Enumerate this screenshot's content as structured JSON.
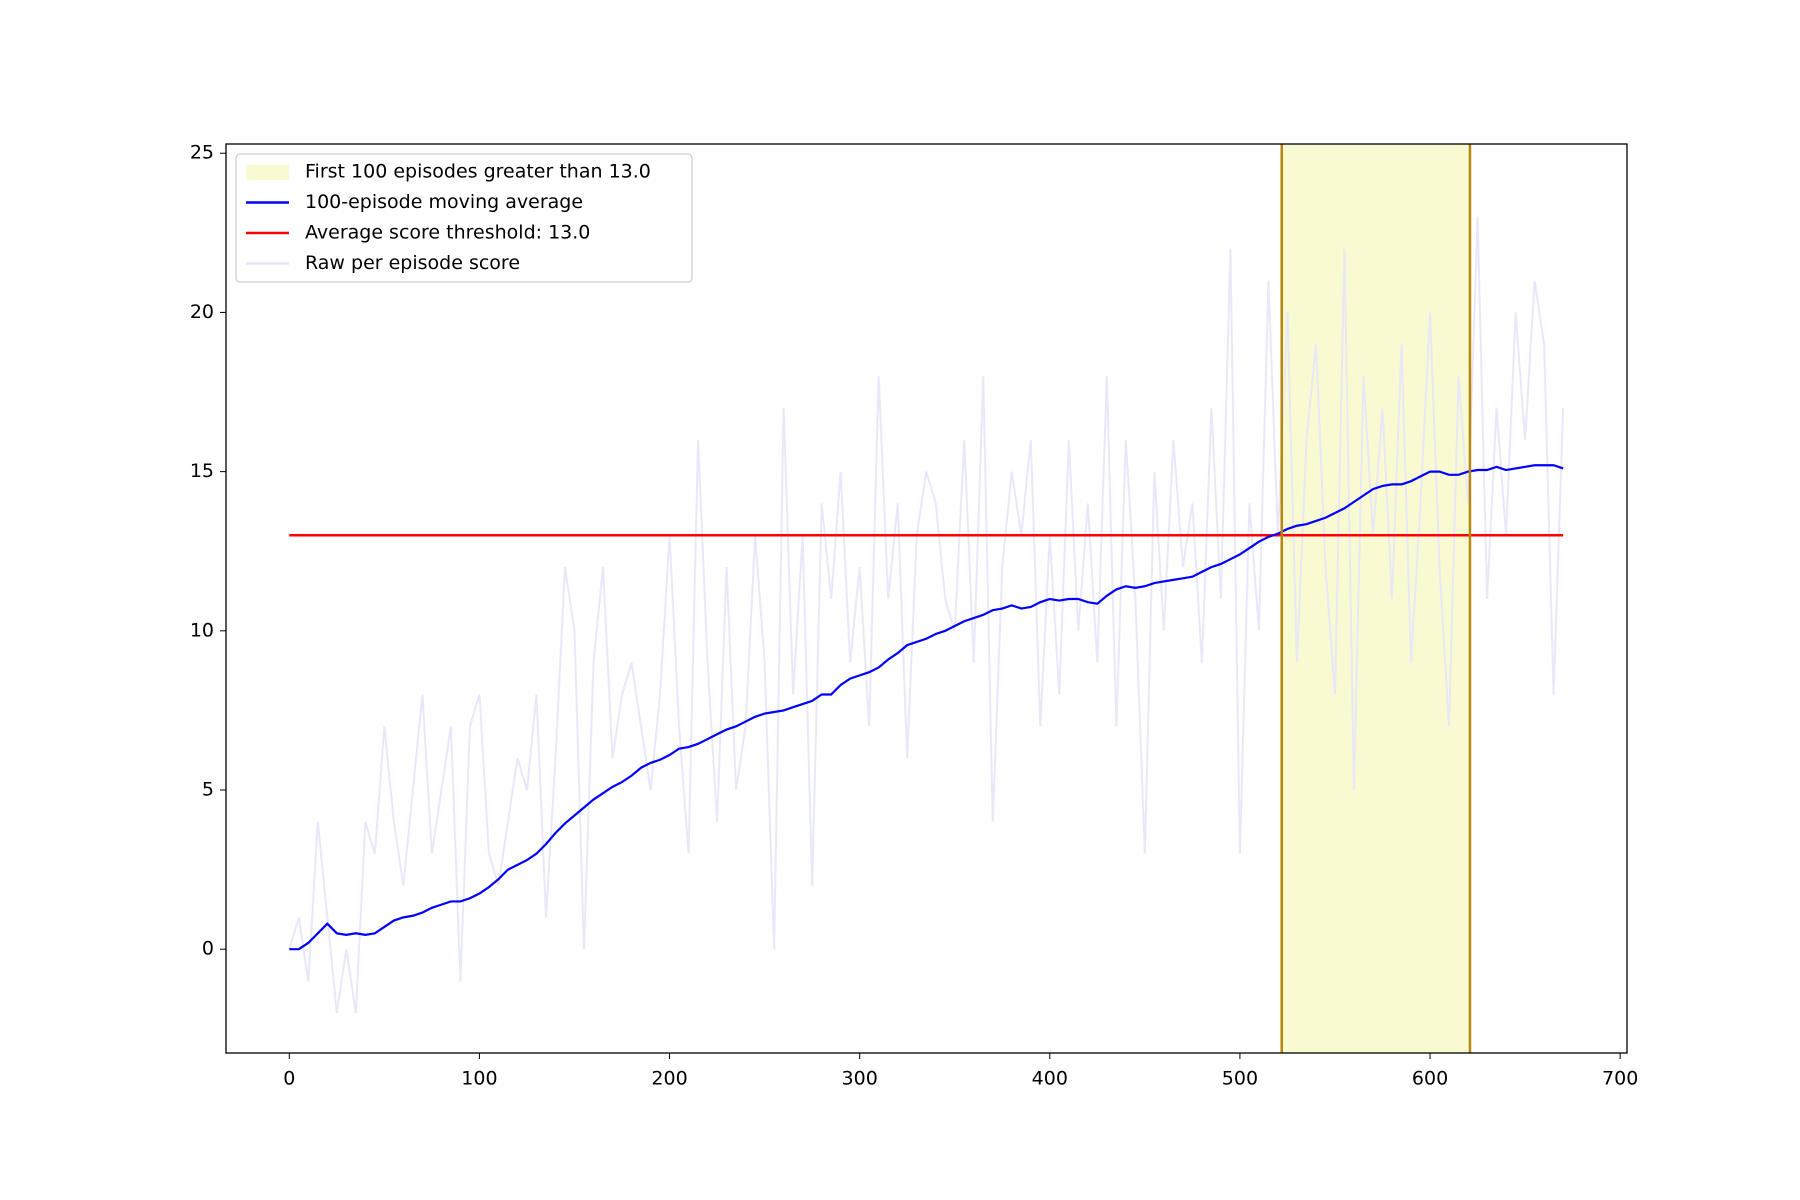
{
  "chart_data": {
    "type": "line",
    "x": [
      0,
      5,
      10,
      15,
      20,
      25,
      30,
      35,
      40,
      45,
      50,
      55,
      60,
      65,
      70,
      75,
      80,
      85,
      90,
      95,
      100,
      105,
      110,
      115,
      120,
      125,
      130,
      135,
      140,
      145,
      150,
      155,
      160,
      165,
      170,
      175,
      180,
      185,
      190,
      195,
      200,
      205,
      210,
      215,
      220,
      225,
      230,
      235,
      240,
      245,
      250,
      255,
      260,
      265,
      270,
      275,
      280,
      285,
      290,
      295,
      300,
      305,
      310,
      315,
      320,
      325,
      330,
      335,
      340,
      345,
      350,
      355,
      360,
      365,
      370,
      375,
      380,
      385,
      390,
      395,
      400,
      405,
      410,
      415,
      420,
      425,
      430,
      435,
      440,
      445,
      450,
      455,
      460,
      465,
      470,
      475,
      480,
      485,
      490,
      495,
      500,
      505,
      510,
      515,
      520,
      525,
      530,
      535,
      540,
      545,
      550,
      555,
      560,
      565,
      570,
      575,
      580,
      585,
      590,
      595,
      600,
      605,
      610,
      615,
      620,
      625,
      630,
      635,
      640,
      645,
      650,
      655,
      660,
      665,
      670
    ],
    "series": [
      {
        "name": "Raw per episode score",
        "color": "#e6e6fa",
        "values": [
          0,
          1,
          -1,
          4,
          1,
          -2,
          0,
          -2,
          4,
          3,
          7,
          4,
          2,
          5,
          8,
          3,
          5,
          7,
          -1,
          7,
          8,
          3,
          2,
          4,
          6,
          5,
          8,
          1,
          6,
          12,
          10,
          0,
          9,
          12,
          6,
          8,
          9,
          7,
          5,
          8,
          13,
          7,
          3,
          16,
          9,
          4,
          12,
          5,
          7,
          13,
          9,
          0,
          17,
          8,
          13,
          2,
          14,
          11,
          15,
          9,
          12,
          7,
          18,
          11,
          14,
          6,
          13,
          15,
          14,
          11,
          10,
          16,
          9,
          18,
          4,
          12,
          15,
          13,
          16,
          7,
          13,
          8,
          16,
          10,
          14,
          9,
          18,
          7,
          16,
          11,
          3,
          15,
          10,
          16,
          12,
          14,
          9,
          17,
          11,
          22,
          3,
          14,
          10,
          21,
          13,
          20,
          9,
          16,
          19,
          12,
          8,
          22,
          5,
          18,
          13,
          17,
          11,
          19,
          9,
          14,
          20,
          12,
          7,
          18,
          14,
          23,
          11,
          17,
          13,
          20,
          16,
          21,
          19,
          8,
          17
        ]
      },
      {
        "name": "100-episode moving average",
        "color": "#0000ff",
        "values": [
          0,
          0,
          0.2,
          0.5,
          0.8,
          0.5,
          0.45,
          0.5,
          0.45,
          0.5,
          0.7,
          0.9,
          1.0,
          1.05,
          1.15,
          1.3,
          1.4,
          1.5,
          1.5,
          1.6,
          1.75,
          1.95,
          2.2,
          2.5,
          2.65,
          2.8,
          3.0,
          3.3,
          3.65,
          3.95,
          4.2,
          4.45,
          4.7,
          4.9,
          5.1,
          5.25,
          5.45,
          5.7,
          5.85,
          5.95,
          6.1,
          6.3,
          6.35,
          6.45,
          6.6,
          6.75,
          6.9,
          7.0,
          7.15,
          7.3,
          7.4,
          7.45,
          7.5,
          7.6,
          7.7,
          7.8,
          8.0,
          8.0,
          8.3,
          8.5,
          8.6,
          8.7,
          8.85,
          9.1,
          9.3,
          9.55,
          9.65,
          9.75,
          9.9,
          10.0,
          10.15,
          10.3,
          10.4,
          10.5,
          10.65,
          10.7,
          10.8,
          10.7,
          10.75,
          10.9,
          11.0,
          10.95,
          11.0,
          11.0,
          10.9,
          10.85,
          11.1,
          11.3,
          11.4,
          11.35,
          11.4,
          11.5,
          11.55,
          11.6,
          11.65,
          11.7,
          11.85,
          12.0,
          12.1,
          12.25,
          12.4,
          12.6,
          12.8,
          12.95,
          13.05,
          13.2,
          13.3,
          13.35,
          13.45,
          13.55,
          13.7,
          13.85,
          14.05,
          14.25,
          14.45,
          14.55,
          14.6,
          14.6,
          14.7,
          14.85,
          15.0,
          15.0,
          14.9,
          14.9,
          15.0,
          15.05,
          15.05,
          15.15,
          15.05,
          15.1,
          15.15,
          15.2,
          15.2,
          15.2,
          15.1
        ]
      }
    ],
    "threshold": {
      "name": "Average score threshold: 13.0",
      "value": 13,
      "color": "#ff0000",
      "x": [
        0,
        670
      ]
    },
    "span": {
      "name": "First 100 episodes greater than 13.0",
      "x": [
        522,
        621
      ],
      "color": "#fafad2",
      "edge_color": "#b8860b"
    },
    "xlim": [
      -33.3,
      703.6
    ],
    "ylim": [
      -3.26,
      25.29
    ],
    "xticks": [
      0,
      100,
      200,
      300,
      400,
      500,
      600,
      700
    ],
    "yticks": [
      0,
      5,
      10,
      15,
      20,
      25
    ],
    "legend": "upper left"
  }
}
